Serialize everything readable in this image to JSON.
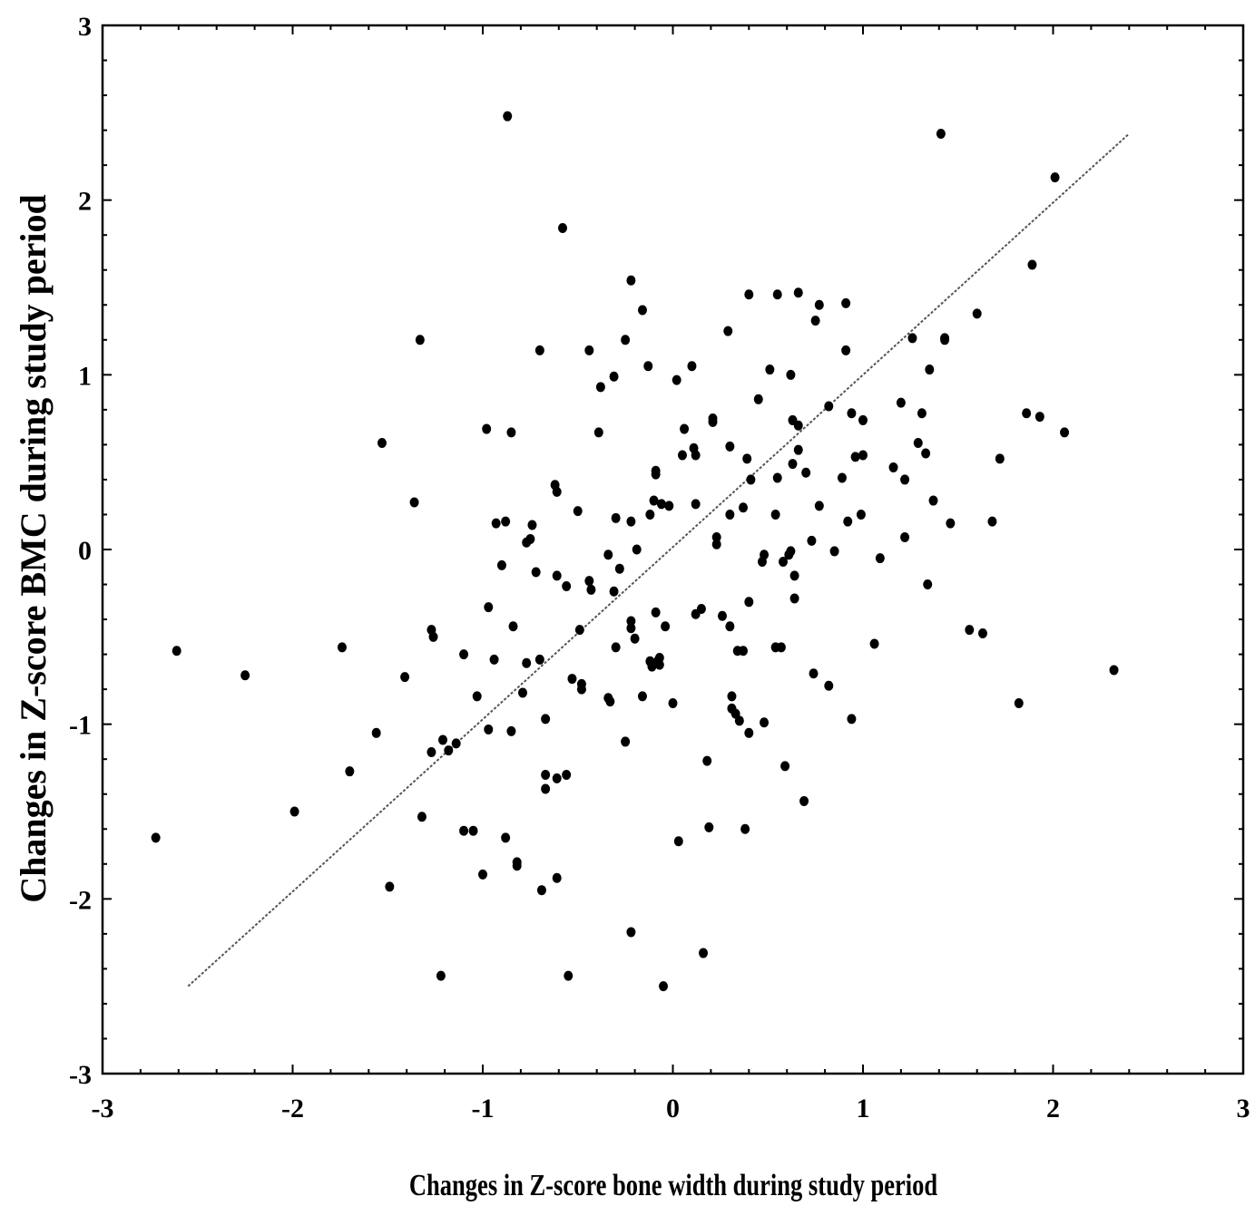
{
  "chart_data": {
    "type": "scatter",
    "title": "",
    "xlabel": "Changes in Z-score bone width during study period",
    "ylabel": "Changes in Z-score BMC during study period",
    "xlim": [
      -3,
      3
    ],
    "ylim": [
      -3,
      3
    ],
    "xticks": [
      "-3",
      "-2",
      "-1",
      "0",
      "1",
      "2",
      "3"
    ],
    "yticks": [
      "-3",
      "-2",
      "-1",
      "0",
      "1",
      "2",
      "3"
    ],
    "grid": false,
    "legend": "none",
    "marker_color": "#000000",
    "fit_line": {
      "x": [
        -2.55,
        2.4
      ],
      "y": [
        -2.5,
        2.38
      ],
      "style": "dashed",
      "color": "#555555"
    },
    "points": [
      [
        -2.72,
        -1.65
      ],
      [
        -2.61,
        -0.58
      ],
      [
        -2.25,
        -0.72
      ],
      [
        -1.99,
        -1.5
      ],
      [
        -1.74,
        -0.56
      ],
      [
        -1.7,
        -1.27
      ],
      [
        -1.56,
        -1.05
      ],
      [
        -1.53,
        0.61
      ],
      [
        -1.49,
        -1.93
      ],
      [
        -1.41,
        -0.73
      ],
      [
        -1.36,
        0.27
      ],
      [
        -1.33,
        1.2
      ],
      [
        -1.32,
        -1.53
      ],
      [
        -1.27,
        -0.46
      ],
      [
        -1.26,
        -0.5
      ],
      [
        -1.27,
        -1.16
      ],
      [
        -1.22,
        -2.44
      ],
      [
        -1.21,
        -1.09
      ],
      [
        -1.18,
        -1.15
      ],
      [
        -1.14,
        -1.11
      ],
      [
        -1.1,
        -0.6
      ],
      [
        -1.1,
        -1.61
      ],
      [
        -1.05,
        -1.61
      ],
      [
        -1.03,
        -0.84
      ],
      [
        -1.0,
        -1.86
      ],
      [
        -0.98,
        0.69
      ],
      [
        -0.97,
        -1.03
      ],
      [
        -0.97,
        -0.33
      ],
      [
        -0.94,
        -0.63
      ],
      [
        -0.93,
        0.15
      ],
      [
        -0.9,
        -0.09
      ],
      [
        -0.88,
        0.16
      ],
      [
        -0.88,
        -1.65
      ],
      [
        -0.87,
        2.48
      ],
      [
        -0.85,
        0.67
      ],
      [
        -0.85,
        -1.04
      ],
      [
        -0.84,
        -0.44
      ],
      [
        -0.82,
        -1.79
      ],
      [
        -0.82,
        -1.81
      ],
      [
        -0.79,
        -0.82
      ],
      [
        -0.77,
        0.04
      ],
      [
        -0.77,
        -0.65
      ],
      [
        -0.75,
        0.06
      ],
      [
        -0.74,
        0.14
      ],
      [
        -0.72,
        -0.13
      ],
      [
        -0.7,
        1.14
      ],
      [
        -0.7,
        -0.63
      ],
      [
        -0.69,
        -1.95
      ],
      [
        -0.67,
        -0.97
      ],
      [
        -0.67,
        -1.29
      ],
      [
        -0.67,
        -1.37
      ],
      [
        -0.61,
        -1.88
      ],
      [
        -0.62,
        0.37
      ],
      [
        -0.61,
        0.33
      ],
      [
        -0.61,
        -0.15
      ],
      [
        -0.61,
        -1.31
      ],
      [
        -0.58,
        1.84
      ],
      [
        -0.56,
        -0.21
      ],
      [
        -0.56,
        -1.29
      ],
      [
        -0.55,
        -2.44
      ],
      [
        -0.53,
        -0.74
      ],
      [
        -0.5,
        0.22
      ],
      [
        -0.49,
        -0.46
      ],
      [
        -0.48,
        -0.77
      ],
      [
        -0.48,
        -0.8
      ],
      [
        -0.44,
        1.14
      ],
      [
        -0.44,
        -0.18
      ],
      [
        -0.43,
        -0.23
      ],
      [
        -0.39,
        0.67
      ],
      [
        -0.38,
        0.93
      ],
      [
        -0.34,
        -0.85
      ],
      [
        -0.34,
        -0.03
      ],
      [
        -0.33,
        -0.87
      ],
      [
        -0.31,
        0.99
      ],
      [
        -0.31,
        -0.24
      ],
      [
        -0.3,
        -0.56
      ],
      [
        -0.3,
        0.18
      ],
      [
        -0.28,
        -0.11
      ],
      [
        -0.25,
        1.2
      ],
      [
        -0.25,
        -1.1
      ],
      [
        -0.22,
        1.54
      ],
      [
        -0.22,
        0.16
      ],
      [
        -0.22,
        -0.41
      ],
      [
        -0.22,
        -0.45
      ],
      [
        -0.22,
        -2.19
      ],
      [
        -0.2,
        -0.51
      ],
      [
        -0.19,
        0.0
      ],
      [
        -0.16,
        1.37
      ],
      [
        -0.16,
        -0.84
      ],
      [
        -0.13,
        1.05
      ],
      [
        -0.12,
        0.2
      ],
      [
        -0.12,
        -0.64
      ],
      [
        -0.11,
        -0.67
      ],
      [
        -0.1,
        0.28
      ],
      [
        -0.09,
        0.43
      ],
      [
        -0.09,
        0.45
      ],
      [
        -0.09,
        -0.36
      ],
      [
        -0.08,
        -0.64
      ],
      [
        -0.07,
        -0.62
      ],
      [
        -0.07,
        -0.66
      ],
      [
        -0.06,
        0.26
      ],
      [
        -0.05,
        -2.5
      ],
      [
        -0.04,
        -0.44
      ],
      [
        -0.02,
        0.25
      ],
      [
        0.0,
        -0.88
      ],
      [
        0.02,
        0.97
      ],
      [
        0.03,
        -1.67
      ],
      [
        0.05,
        0.54
      ],
      [
        0.06,
        0.69
      ],
      [
        0.1,
        1.05
      ],
      [
        0.11,
        0.58
      ],
      [
        0.12,
        0.54
      ],
      [
        0.12,
        0.26
      ],
      [
        0.12,
        -0.37
      ],
      [
        0.15,
        -0.34
      ],
      [
        0.16,
        -2.31
      ],
      [
        0.18,
        -1.21
      ],
      [
        0.19,
        -1.59
      ],
      [
        0.21,
        0.75
      ],
      [
        0.21,
        0.73
      ],
      [
        0.23,
        0.07
      ],
      [
        0.23,
        0.03
      ],
      [
        0.26,
        -0.38
      ],
      [
        0.29,
        1.25
      ],
      [
        0.3,
        0.59
      ],
      [
        0.3,
        0.2
      ],
      [
        0.3,
        -0.44
      ],
      [
        0.31,
        -0.84
      ],
      [
        0.31,
        -0.91
      ],
      [
        0.33,
        -0.94
      ],
      [
        0.34,
        -0.58
      ],
      [
        0.35,
        -0.98
      ],
      [
        0.37,
        -0.58
      ],
      [
        0.37,
        0.24
      ],
      [
        0.38,
        -1.6
      ],
      [
        0.39,
        0.52
      ],
      [
        0.4,
        1.46
      ],
      [
        0.4,
        -0.3
      ],
      [
        0.4,
        -1.05
      ],
      [
        0.41,
        0.4
      ],
      [
        0.45,
        0.86
      ],
      [
        0.47,
        -0.07
      ],
      [
        0.48,
        -0.03
      ],
      [
        0.48,
        -0.99
      ],
      [
        0.51,
        1.03
      ],
      [
        0.54,
        0.2
      ],
      [
        0.54,
        -0.56
      ],
      [
        0.55,
        0.41
      ],
      [
        0.55,
        1.46
      ],
      [
        0.57,
        -0.56
      ],
      [
        0.58,
        -0.07
      ],
      [
        0.59,
        -1.24
      ],
      [
        0.61,
        -0.03
      ],
      [
        0.62,
        -0.01
      ],
      [
        0.62,
        1.0
      ],
      [
        0.63,
        0.74
      ],
      [
        0.63,
        0.49
      ],
      [
        0.64,
        -0.15
      ],
      [
        0.64,
        -0.28
      ],
      [
        0.66,
        1.47
      ],
      [
        0.66,
        0.71
      ],
      [
        0.66,
        0.57
      ],
      [
        0.69,
        -1.44
      ],
      [
        0.7,
        0.44
      ],
      [
        0.73,
        0.05
      ],
      [
        0.74,
        -0.71
      ],
      [
        0.75,
        1.31
      ],
      [
        0.77,
        1.4
      ],
      [
        0.77,
        0.25
      ],
      [
        0.82,
        0.82
      ],
      [
        0.82,
        -0.78
      ],
      [
        0.85,
        -0.01
      ],
      [
        0.89,
        0.41
      ],
      [
        0.91,
        1.14
      ],
      [
        0.91,
        1.41
      ],
      [
        0.92,
        0.16
      ],
      [
        0.94,
        0.78
      ],
      [
        0.94,
        -0.97
      ],
      [
        0.96,
        0.53
      ],
      [
        0.99,
        0.2
      ],
      [
        1.0,
        0.74
      ],
      [
        1.0,
        0.54
      ],
      [
        1.06,
        -0.54
      ],
      [
        1.09,
        -0.05
      ],
      [
        1.16,
        0.47
      ],
      [
        1.2,
        0.84
      ],
      [
        1.22,
        0.07
      ],
      [
        1.22,
        0.4
      ],
      [
        1.26,
        1.21
      ],
      [
        1.29,
        0.61
      ],
      [
        1.31,
        0.78
      ],
      [
        1.33,
        0.55
      ],
      [
        1.34,
        -0.2
      ],
      [
        1.35,
        1.03
      ],
      [
        1.37,
        0.28
      ],
      [
        1.41,
        2.38
      ],
      [
        1.43,
        1.21
      ],
      [
        1.43,
        1.2
      ],
      [
        1.46,
        0.15
      ],
      [
        1.56,
        -0.46
      ],
      [
        1.6,
        1.35
      ],
      [
        1.63,
        -0.48
      ],
      [
        1.68,
        0.16
      ],
      [
        1.72,
        0.52
      ],
      [
        1.82,
        -0.88
      ],
      [
        1.86,
        0.78
      ],
      [
        1.89,
        1.63
      ],
      [
        1.93,
        0.76
      ],
      [
        2.01,
        2.13
      ],
      [
        2.06,
        0.67
      ],
      [
        2.32,
        -0.69
      ]
    ]
  }
}
